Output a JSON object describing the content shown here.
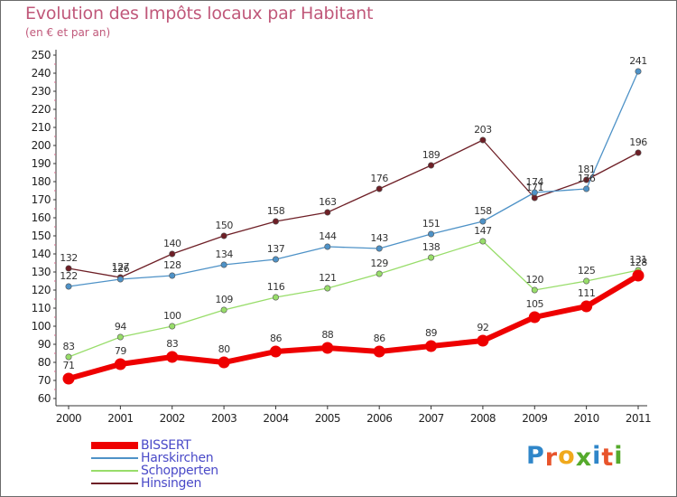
{
  "title": "Evolution des Impôts locaux par Habitant",
  "subtitle": "(en € et par an)",
  "logo": {
    "letters": [
      "P",
      "r",
      "o",
      "x",
      "i",
      "t",
      "i"
    ],
    "colors": [
      "#2f86c9",
      "#e8542b",
      "#f0a91c",
      "#55aa2c",
      "#2f86c9",
      "#e8542b",
      "#55aa2c"
    ]
  },
  "chart_data": {
    "type": "line",
    "title": "Evolution des Impôts locaux par Habitant",
    "subtitle": "(en € et par an)",
    "x": [
      "2000",
      "2001",
      "2002",
      "2003",
      "2004",
      "2005",
      "2006",
      "2007",
      "2008",
      "2009",
      "2010",
      "2011"
    ],
    "ylim": [
      60,
      250
    ],
    "yticks": [
      60,
      70,
      80,
      90,
      100,
      110,
      120,
      130,
      140,
      150,
      160,
      170,
      180,
      190,
      200,
      210,
      220,
      230,
      240,
      250
    ],
    "grid": false,
    "legend_position": "bottom-left",
    "series": [
      {
        "name": "Hinsingen",
        "color": "#6e1f26",
        "values": [
          132,
          127,
          140,
          150,
          158,
          163,
          176,
          189,
          203,
          171,
          181,
          196
        ]
      },
      {
        "name": "Harskirchen",
        "color": "#4e92c7",
        "values": [
          122,
          126,
          128,
          134,
          137,
          144,
          143,
          151,
          158,
          174,
          176,
          241
        ]
      },
      {
        "name": "Schopperten",
        "color": "#98dd6a",
        "values": [
          83,
          94,
          100,
          109,
          116,
          121,
          129,
          138,
          147,
          120,
          125,
          131
        ]
      },
      {
        "name": "BISSERT",
        "color": "#ee0000",
        "values": [
          71,
          79,
          83,
          80,
          86,
          88,
          86,
          89,
          92,
          105,
          111,
          128
        ]
      }
    ],
    "legend_order": [
      "BISSERT",
      "Harskirchen",
      "Schopperten",
      "Hinsingen"
    ]
  }
}
